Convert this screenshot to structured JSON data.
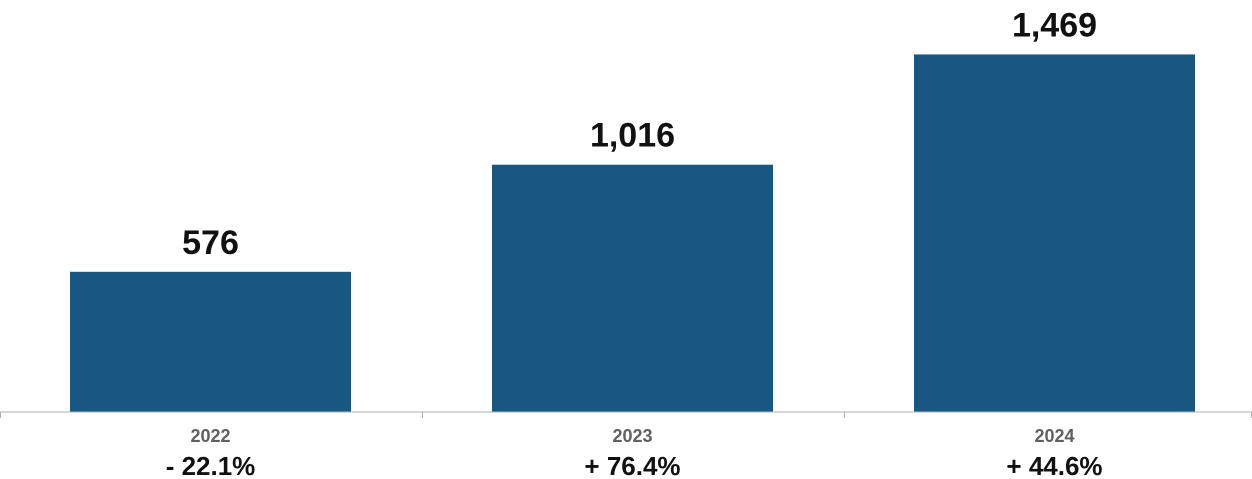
{
  "chart_data": {
    "type": "bar",
    "categories": [
      "2022",
      "2023",
      "2024"
    ],
    "values": [
      576,
      1016,
      1469
    ],
    "value_labels": [
      "576",
      "1,016",
      "1,469"
    ],
    "change_labels": [
      "- 22.1%",
      "+ 76.4%",
      "+ 44.6%"
    ],
    "title": "",
    "xlabel": "",
    "ylabel": "",
    "ylim": [
      0,
      1600
    ],
    "grid": false,
    "legend": "none",
    "colors": {
      "bar": "#185781",
      "value_label": "#111111",
      "category_label": "#606060",
      "change_label": "#111111",
      "axis": "#b0b0b0"
    }
  }
}
